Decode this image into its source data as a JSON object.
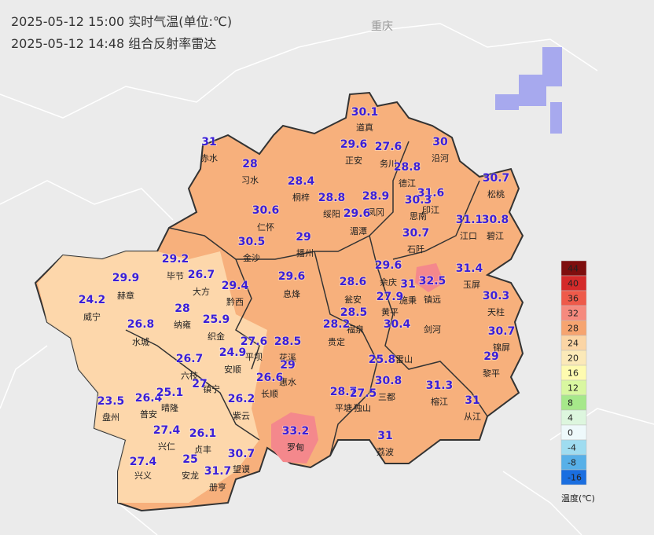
{
  "header": {
    "line1": "2025-05-12 15:00 实时气温(单位:℃)",
    "line2": "2025-05-12 14:48 组合反射率雷达",
    "neighbor": "重庆"
  },
  "stations": [
    {
      "value": 30.1,
      "name": "道真"
    },
    {
      "value": 31,
      "name": "赤水"
    },
    {
      "value": 29.6,
      "name": "正安"
    },
    {
      "value": 27.6,
      "name": "务川"
    },
    {
      "value": 30,
      "name": "沿河"
    },
    {
      "value": 28,
      "name": "习水"
    },
    {
      "value": 28.8,
      "name": "德江"
    },
    {
      "value": 28.4,
      "name": "桐梓"
    },
    {
      "value": 28.8,
      "name": "绥阳"
    },
    {
      "value": 28.9,
      "name": "凤冈"
    },
    {
      "value": 31.6,
      "name": "印江"
    },
    {
      "value": 30.7,
      "name": "松桃"
    },
    {
      "value": 30.3,
      "name": "思南"
    },
    {
      "value": 30.6,
      "name": "仁怀"
    },
    {
      "value": 29.6,
      "name": "湄潭"
    },
    {
      "value": 31.1,
      "name": "江口"
    },
    {
      "value": 30.8,
      "name": "碧江"
    },
    {
      "value": 29,
      "name": "播州"
    },
    {
      "value": 30.5,
      "name": "金沙"
    },
    {
      "value": 30.7,
      "name": "石阡"
    },
    {
      "value": 29.2,
      "name": "毕节"
    },
    {
      "value": 29.9,
      "name": "赫章"
    },
    {
      "value": 26.7,
      "name": "大方"
    },
    {
      "value": 29.4,
      "name": "黔西"
    },
    {
      "value": 29.6,
      "name": "息烽"
    },
    {
      "value": 28.6,
      "name": "瓮安"
    },
    {
      "value": 29.6,
      "name": "余庆"
    },
    {
      "value": 31,
      "name": "施秉"
    },
    {
      "value": 32.5,
      "name": "镇远"
    },
    {
      "value": 31.4,
      "name": "玉屏"
    },
    {
      "value": 30.3,
      "name": "天柱"
    },
    {
      "value": 24.2,
      "name": "威宁"
    },
    {
      "value": 28,
      "name": "纳雍"
    },
    {
      "value": 27.9,
      "name": "黄平"
    },
    {
      "value": 25.9,
      "name": "织金"
    },
    {
      "value": 26.8,
      "name": "水城"
    },
    {
      "value": 28.5,
      "name": "福泉"
    },
    {
      "value": 30.4,
      "name": "剑河"
    },
    {
      "value": 30.7,
      "name": "锦屏"
    },
    {
      "value": 28.2,
      "name": "贵定"
    },
    {
      "value": 27.6,
      "name": "平坝"
    },
    {
      "value": 28.5,
      "name": "花溪"
    },
    {
      "value": 29,
      "name": "惠水"
    },
    {
      "value": 24.9,
      "name": "安顺"
    },
    {
      "value": 26.7,
      "name": "六枝"
    },
    {
      "value": 29,
      "name": "黎平"
    },
    {
      "value": 25.8,
      "name": "雷山"
    },
    {
      "value": 27,
      "name": "镇宁"
    },
    {
      "value": 26.6,
      "name": "长顺"
    },
    {
      "value": 28.7,
      "name": "平塘"
    },
    {
      "value": 27.5,
      "name": "独山"
    },
    {
      "value": 30.8,
      "name": "三都"
    },
    {
      "value": 31.3,
      "name": "榕江"
    },
    {
      "value": 23.5,
      "name": "盘州"
    },
    {
      "value": 26.4,
      "name": "普安"
    },
    {
      "value": 25.1,
      "name": "晴隆"
    },
    {
      "value": 26.2,
      "name": "紫云"
    },
    {
      "value": 31,
      "name": "从江"
    },
    {
      "value": 27.4,
      "name": "兴仁"
    },
    {
      "value": 26.1,
      "name": "贞丰"
    },
    {
      "value": 33.2,
      "name": "罗甸"
    },
    {
      "value": 31,
      "name": "荔波"
    },
    {
      "value": 30.7,
      "name": "望谟"
    },
    {
      "value": 27.4,
      "name": "兴义"
    },
    {
      "value": 25,
      "name": "安龙"
    },
    {
      "value": 31.7,
      "name": "册亨"
    }
  ],
  "legend": {
    "title": "温度(℃)",
    "items": [
      {
        "label": 44,
        "color": "#7e0e0e"
      },
      {
        "label": 40,
        "color": "#d42a2a"
      },
      {
        "label": 36,
        "color": "#ee5a4a"
      },
      {
        "label": 32,
        "color": "#f68a7e"
      },
      {
        "label": 28,
        "color": "#f6a470"
      },
      {
        "label": 24,
        "color": "#fbd5a5"
      },
      {
        "label": 20,
        "color": "#fbe9b8"
      },
      {
        "label": 16,
        "color": "#fefbb0"
      },
      {
        "label": 12,
        "color": "#d9f7a0"
      },
      {
        "label": 8,
        "color": "#a6e88a"
      },
      {
        "label": 4,
        "color": "#ddf6de"
      },
      {
        "label": 0,
        "color": "#eef9fb"
      },
      {
        "label": -4,
        "color": "#9fdcf0"
      },
      {
        "label": -8,
        "color": "#57b0e8"
      },
      {
        "label": -16,
        "color": "#1a6ee0"
      }
    ]
  }
}
